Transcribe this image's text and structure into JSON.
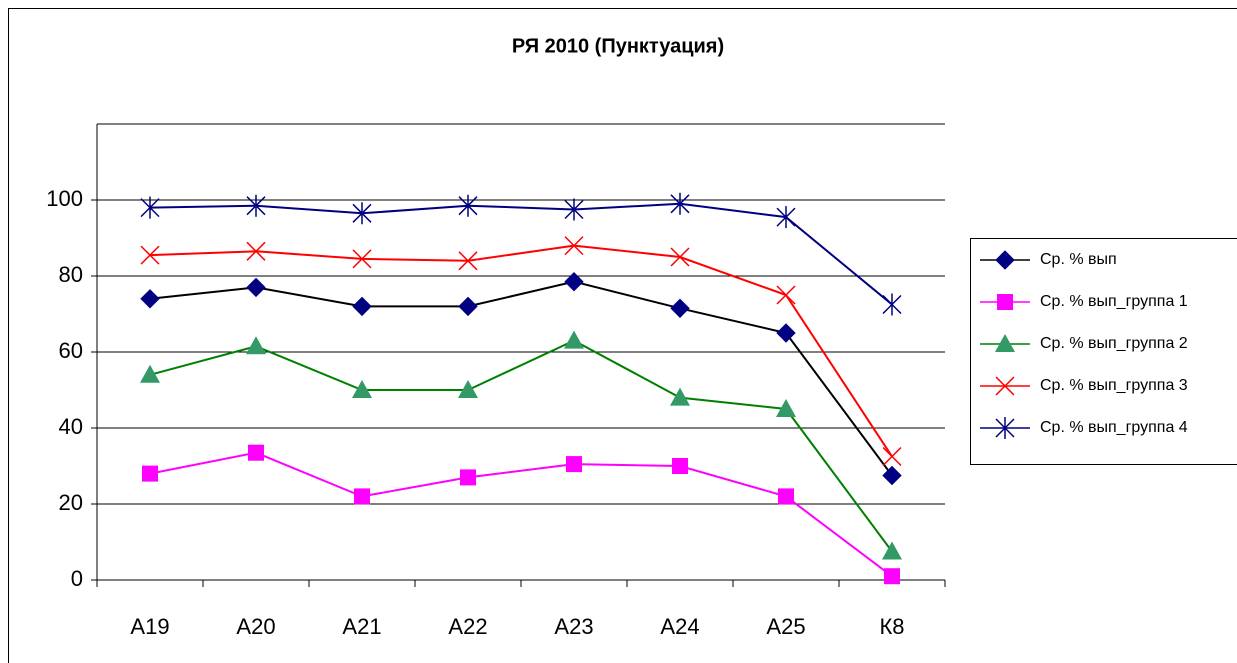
{
  "chart_data": {
    "type": "line",
    "title": "РЯ 2010 (Пунктуация)",
    "categories": [
      "А19",
      "А20",
      "А21",
      "А22",
      "А23",
      "А24",
      "А25",
      "К8"
    ],
    "series": [
      {
        "name": "Ср. % вып",
        "color": "#000000",
        "marker_color": "#000080",
        "marker": "diamond",
        "values": [
          74,
          77,
          72,
          72,
          78.5,
          71.5,
          65,
          27.5
        ]
      },
      {
        "name": "Ср. % вып_группа 1",
        "color": "#ff00ff",
        "marker_color": "#ff00ff",
        "marker": "square",
        "values": [
          28,
          33.5,
          22,
          27,
          30.5,
          30,
          22,
          1
        ]
      },
      {
        "name": "Ср. % вып_группа 2",
        "color": "#008000",
        "marker_color": "#339966",
        "marker": "triangle",
        "values": [
          54,
          61.5,
          50,
          50,
          63,
          48,
          45,
          7.5
        ]
      },
      {
        "name": "Ср. % вып_группа 3",
        "color": "#ff0000",
        "marker_color": "#ff0000",
        "marker": "x",
        "values": [
          85.5,
          86.5,
          84.5,
          84,
          88,
          85,
          75,
          32.5
        ]
      },
      {
        "name": "Ср. % вып_группа 4",
        "color": "#000080",
        "marker_color": "#000080",
        "marker": "star",
        "values": [
          98,
          98.5,
          96.5,
          98.5,
          97.5,
          99,
          95.5,
          72.5
        ]
      }
    ],
    "ylim": [
      0,
      120
    ],
    "yticks": [
      0,
      20,
      40,
      60,
      80,
      100
    ],
    "grid": true,
    "legend": "right"
  }
}
